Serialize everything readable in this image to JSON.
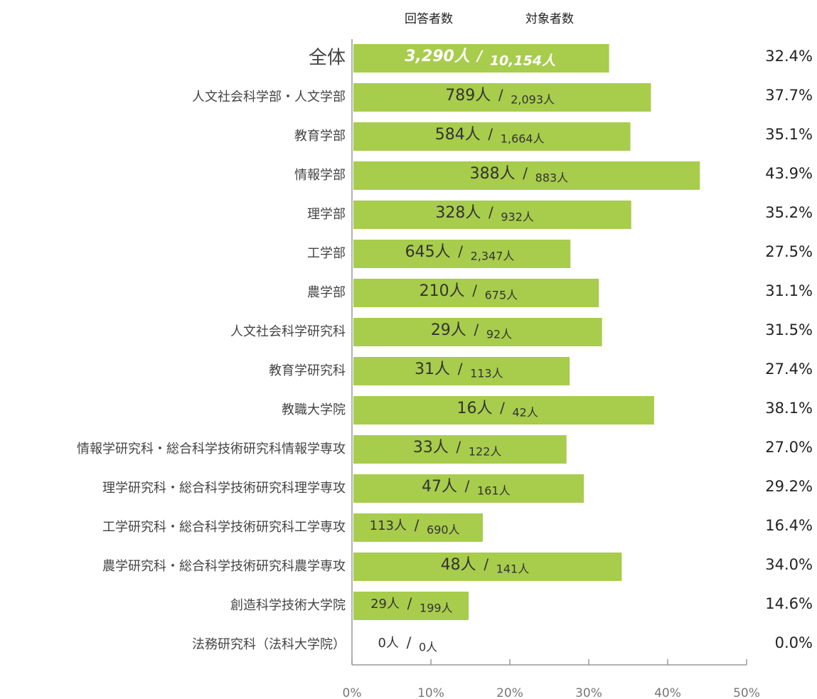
{
  "chart_data": {
    "type": "bar",
    "orientation": "horizontal",
    "headers": [
      "回答者数",
      "対象者数"
    ],
    "separator": "/",
    "categories": [
      "全体",
      "人文社会科学部・人文学部",
      "教育学部",
      "情報学部",
      "理学部",
      "工学部",
      "農学部",
      "人文社会科学研究科",
      "教育学研究科",
      "教職大学院",
      "情報学研究科・総合科学技術研究科情報学専攻",
      "理学研究科・総合科学技術研究科理学専攻",
      "工学研究科・総合科学技術研究科工学専攻",
      "農学研究科・総合科学技術研究科農学専攻",
      "創造科学技術大学院",
      "法務研究科（法科大学院）"
    ],
    "values": [
      32.4,
      37.7,
      35.1,
      43.9,
      35.2,
      27.5,
      31.1,
      31.5,
      27.4,
      38.1,
      27.0,
      29.2,
      16.4,
      34.0,
      14.6,
      0.0
    ],
    "value_labels": [
      "32.4%",
      "37.7%",
      "35.1%",
      "43.9%",
      "35.2%",
      "27.5%",
      "31.1%",
      "31.5%",
      "27.4%",
      "38.1%",
      "27.0%",
      "29.2%",
      "16.4%",
      "34.0%",
      "14.6%",
      "0.0%"
    ],
    "respondent_labels": [
      "3,290人",
      "789人",
      "584人",
      "388人",
      "328人",
      "645人",
      "210人",
      "29人",
      "31人",
      "16人",
      "33人",
      "47人",
      "113人",
      "48人",
      "29人",
      "0人"
    ],
    "target_labels": [
      "10,154人",
      "2,093人",
      "1,664人",
      "883人",
      "932人",
      "2,347人",
      "675人",
      "92人",
      "113人",
      "42人",
      "122人",
      "161人",
      "690人",
      "141人",
      "199人",
      "0人"
    ],
    "color": "#a8cc4c",
    "xlim": [
      0,
      50
    ],
    "xticks": [
      {
        "value": 0,
        "label": "0%"
      },
      {
        "value": 10,
        "label": "10%"
      },
      {
        "value": 20,
        "label": "20%"
      },
      {
        "value": 30,
        "label": "30%"
      },
      {
        "value": 40,
        "label": "40%"
      },
      {
        "value": 50,
        "label": "50%"
      }
    ]
  }
}
